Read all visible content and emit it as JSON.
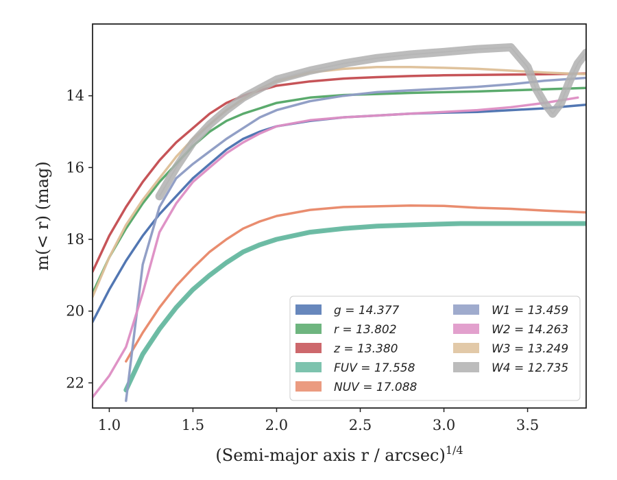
{
  "chart_data": {
    "type": "line",
    "title": "",
    "xlabel": "(Semi-major axis r / arcsec)",
    "xlabel_var": "r",
    "xlabel_sup": "1/4",
    "ylabel": "m(< r) (mag)",
    "xlim": [
      0.9,
      3.85
    ],
    "ylim": [
      22.7,
      12.0
    ],
    "y_inverted": true,
    "xticks": [
      "1.0",
      "1.5",
      "2.0",
      "2.5",
      "3.0",
      "3.5"
    ],
    "yticks": [
      "14",
      "16",
      "18",
      "20",
      "22"
    ],
    "legend_position": "lower-right",
    "legend_columns": 2,
    "series": [
      {
        "name": "g = 14.377",
        "color": "#4c72b0",
        "x": [
          0.9,
          1.0,
          1.1,
          1.2,
          1.3,
          1.4,
          1.5,
          1.6,
          1.7,
          1.8,
          1.9,
          2.0,
          2.2,
          2.4,
          2.6,
          2.8,
          3.0,
          3.2,
          3.4,
          3.6,
          3.85
        ],
        "y": [
          20.3,
          19.4,
          18.6,
          17.9,
          17.3,
          16.8,
          16.3,
          15.9,
          15.5,
          15.2,
          15.0,
          14.85,
          14.7,
          14.6,
          14.55,
          14.5,
          14.47,
          14.45,
          14.4,
          14.35,
          14.25
        ]
      },
      {
        "name": "r = 13.802",
        "color": "#55a868",
        "x": [
          0.9,
          1.0,
          1.1,
          1.2,
          1.3,
          1.4,
          1.5,
          1.6,
          1.7,
          1.8,
          1.9,
          2.0,
          2.2,
          2.4,
          2.6,
          2.8,
          3.0,
          3.2,
          3.4,
          3.6,
          3.85
        ],
        "y": [
          19.5,
          18.5,
          17.7,
          17.0,
          16.4,
          15.9,
          15.4,
          15.0,
          14.7,
          14.5,
          14.35,
          14.2,
          14.05,
          13.98,
          13.95,
          13.92,
          13.9,
          13.88,
          13.85,
          13.82,
          13.78
        ]
      },
      {
        "name": "z = 13.380",
        "color": "#c44e52",
        "x": [
          0.9,
          1.0,
          1.1,
          1.2,
          1.3,
          1.4,
          1.5,
          1.6,
          1.7,
          1.8,
          1.9,
          2.0,
          2.2,
          2.4,
          2.6,
          2.8,
          3.0,
          3.2,
          3.4,
          3.6,
          3.85
        ],
        "y": [
          18.9,
          17.9,
          17.1,
          16.4,
          15.8,
          15.3,
          14.9,
          14.5,
          14.2,
          14.0,
          13.85,
          13.72,
          13.6,
          13.52,
          13.48,
          13.45,
          13.43,
          13.42,
          13.41,
          13.4,
          13.38
        ]
      },
      {
        "name": "FUV = 17.558",
        "color": "#66b8a0",
        "x": [
          1.1,
          1.2,
          1.3,
          1.4,
          1.5,
          1.6,
          1.7,
          1.8,
          1.9,
          2.0,
          2.2,
          2.4,
          2.6,
          2.8,
          3.1,
          3.3,
          3.6,
          3.85
        ],
        "y": [
          22.2,
          21.2,
          20.5,
          19.9,
          19.4,
          19.0,
          18.65,
          18.35,
          18.15,
          18.0,
          17.8,
          17.7,
          17.63,
          17.6,
          17.56,
          17.56,
          17.56,
          17.56
        ]
      },
      {
        "name": "NUV = 17.088",
        "color": "#e8896a",
        "x": [
          1.1,
          1.2,
          1.3,
          1.4,
          1.5,
          1.6,
          1.7,
          1.8,
          1.9,
          2.0,
          2.2,
          2.4,
          2.6,
          2.8,
          3.0,
          3.2,
          3.4,
          3.6,
          3.85
        ],
        "y": [
          21.4,
          20.6,
          19.9,
          19.3,
          18.8,
          18.35,
          18.0,
          17.7,
          17.5,
          17.35,
          17.18,
          17.1,
          17.08,
          17.06,
          17.07,
          17.12,
          17.15,
          17.2,
          17.25
        ]
      },
      {
        "name": "W1 = 13.459",
        "color": "#8e9cc4",
        "x": [
          1.1,
          1.2,
          1.3,
          1.4,
          1.5,
          1.6,
          1.7,
          1.8,
          1.9,
          2.0,
          2.2,
          2.4,
          2.6,
          2.8,
          3.0,
          3.2,
          3.4,
          3.6,
          3.85
        ],
        "y": [
          22.5,
          18.7,
          17.1,
          16.3,
          15.9,
          15.55,
          15.2,
          14.9,
          14.6,
          14.4,
          14.15,
          14.0,
          13.9,
          13.85,
          13.8,
          13.75,
          13.68,
          13.58,
          13.5
        ]
      },
      {
        "name": "W2 = 14.263",
        "color": "#dd8fc4",
        "x": [
          0.9,
          1.0,
          1.1,
          1.2,
          1.3,
          1.4,
          1.5,
          1.6,
          1.7,
          1.8,
          1.9,
          2.0,
          2.2,
          2.4,
          2.6,
          2.8,
          3.0,
          3.2,
          3.4,
          3.6,
          3.8
        ],
        "y": [
          22.4,
          21.8,
          21.0,
          19.5,
          17.8,
          17.0,
          16.4,
          16.0,
          15.6,
          15.3,
          15.05,
          14.85,
          14.68,
          14.6,
          14.55,
          14.5,
          14.45,
          14.4,
          14.32,
          14.2,
          14.05
        ]
      },
      {
        "name": "W3 = 13.249",
        "color": "#ddc099",
        "x": [
          0.9,
          1.0,
          1.1,
          1.2,
          1.3,
          1.4,
          1.5,
          1.6,
          1.7,
          1.8,
          1.9,
          2.0,
          2.2,
          2.4,
          2.6,
          2.8,
          3.0,
          3.2,
          3.4,
          3.6,
          3.85
        ],
        "y": [
          19.6,
          18.5,
          17.6,
          16.9,
          16.3,
          15.7,
          15.2,
          14.8,
          14.4,
          14.1,
          13.8,
          13.6,
          13.35,
          13.25,
          13.2,
          13.2,
          13.22,
          13.25,
          13.3,
          13.35,
          13.4
        ]
      },
      {
        "name": "W4 = 12.735",
        "color": "#b0b0b0",
        "x": [
          1.3,
          1.4,
          1.5,
          1.6,
          1.7,
          1.8,
          1.9,
          2.0,
          2.2,
          2.4,
          2.6,
          2.8,
          3.0,
          3.2,
          3.4,
          3.5,
          3.55,
          3.6,
          3.65,
          3.7,
          3.75,
          3.8,
          3.85
        ],
        "y": [
          16.8,
          16.0,
          15.3,
          14.8,
          14.4,
          14.05,
          13.8,
          13.55,
          13.3,
          13.1,
          12.95,
          12.85,
          12.78,
          12.7,
          12.65,
          13.2,
          13.8,
          14.2,
          14.5,
          14.2,
          13.6,
          13.1,
          12.8
        ]
      }
    ]
  }
}
